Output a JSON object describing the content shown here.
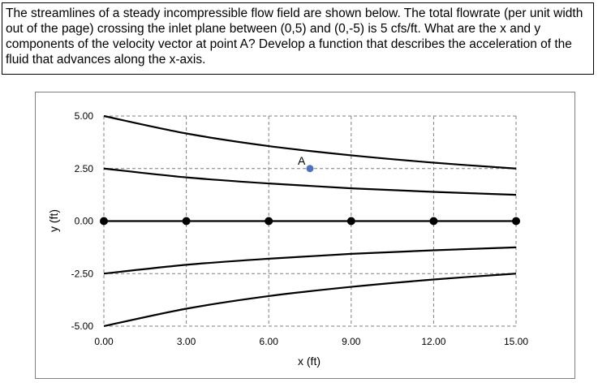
{
  "problem": {
    "text": "The streamlines of a steady incompressible flow field are shown below.  The total flowrate (per unit width out of the page) crossing the inlet plane between (0,5) and (0,-5) is 5 cfs/ft.  What are the x and y components of the velocity vector at point A?  Develop a function that describes the acceleration of the fluid that advances along the x-axis."
  },
  "chart_data": {
    "type": "line",
    "xlabel": "x (ft)",
    "ylabel": "y (ft)",
    "xlim": [
      0,
      15
    ],
    "ylim": [
      -5,
      5
    ],
    "x_ticks": [
      "0.00",
      "3.00",
      "6.00",
      "9.00",
      "12.00",
      "15.00"
    ],
    "y_ticks": [
      "5.00",
      "2.50",
      "0.00",
      "-2.50",
      "-5.00"
    ],
    "grid": true,
    "colors": {
      "line": "#000000",
      "marker": "#000000",
      "point_a": "#4f72be",
      "grid": "#7f7f7f"
    },
    "series": [
      {
        "x": [
          0,
          3,
          6,
          9,
          12,
          15
        ],
        "y": [
          5.0,
          4.17,
          3.57,
          3.13,
          2.78,
          2.5
        ]
      },
      {
        "x": [
          0,
          3,
          6,
          9,
          12,
          15
        ],
        "y": [
          2.5,
          2.08,
          1.79,
          1.56,
          1.39,
          1.25
        ]
      },
      {
        "x": [
          0,
          3,
          6,
          9,
          12,
          15
        ],
        "y": [
          0,
          0,
          0,
          0,
          0,
          0
        ],
        "markers": true
      },
      {
        "x": [
          0,
          3,
          6,
          9,
          12,
          15
        ],
        "y": [
          -2.5,
          -2.08,
          -1.79,
          -1.56,
          -1.39,
          -1.25
        ]
      },
      {
        "x": [
          0,
          3,
          6,
          9,
          12,
          15
        ],
        "y": [
          -5.0,
          -4.17,
          -3.57,
          -3.13,
          -2.78,
          -2.5
        ]
      }
    ],
    "annotations": [
      {
        "label": "A",
        "x": 7.5,
        "y": 2.5
      }
    ]
  }
}
